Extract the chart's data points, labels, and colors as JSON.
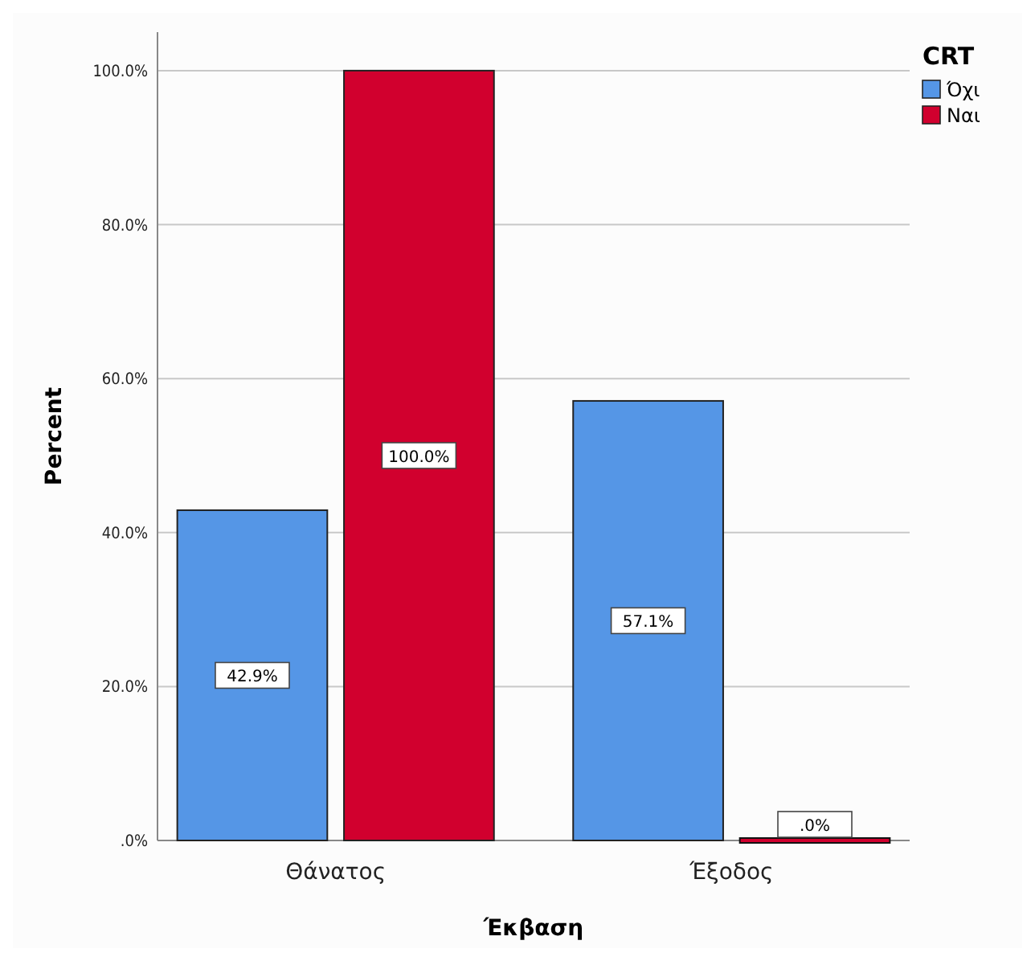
{
  "chart_data": {
    "type": "bar",
    "xlabel": "Έκβαση",
    "ylabel": "Percent",
    "legend_title": "CRT",
    "categories": [
      "Θάνατος",
      "Έξοδος"
    ],
    "series": [
      {
        "name": "Όχι",
        "color": "#5596e6",
        "values": [
          42.9,
          57.1
        ],
        "value_labels": [
          "42.9%",
          "57.1%"
        ]
      },
      {
        "name": "Ναι",
        "color": "#d1002e",
        "values": [
          100,
          0
        ],
        "value_labels": [
          "100.0%",
          ".0%"
        ]
      }
    ],
    "ylim": [
      0,
      105
    ],
    "yticks": [
      {
        "value": 0,
        "label": ".0%"
      },
      {
        "value": 20,
        "label": "20.0%"
      },
      {
        "value": 40,
        "label": "40.0%"
      },
      {
        "value": 60,
        "label": "60.0%"
      },
      {
        "value": 80,
        "label": "80.0%"
      },
      {
        "value": 100,
        "label": "100.0%"
      }
    ],
    "grid": "y",
    "legend": "top right"
  }
}
